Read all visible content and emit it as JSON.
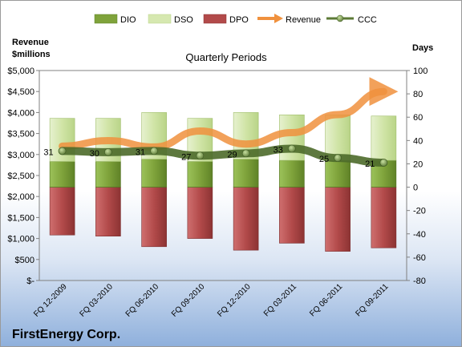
{
  "chart_data": {
    "type": "bar",
    "title": "Quarterly Periods",
    "company": "FirstEnergy Corp.",
    "left_axis_label": [
      "Revenue",
      "$millions"
    ],
    "right_axis_label": "Days",
    "categories": [
      "FQ 12-2009",
      "FQ 03-2010",
      "FQ 06-2010",
      "FQ 09-2010",
      "FQ 12-2010",
      "FQ 03-2011",
      "FQ 06-2011",
      "FQ 09-2011"
    ],
    "left_ticks": [
      "$5,000",
      "$4,500",
      "$4,000",
      "$3,500",
      "$3,000",
      "$2,500",
      "$2,000",
      "$1,500",
      "$1,000",
      "$500",
      "$-"
    ],
    "right_ticks": [
      "100",
      "80",
      "60",
      "40",
      "20",
      "0",
      "-20",
      "-40",
      "-60",
      "-80"
    ],
    "left_ylim": [
      0,
      5000
    ],
    "right_ylim": [
      -80,
      100
    ],
    "legend_position": "top",
    "series": [
      {
        "name": "DIO",
        "kind": "stacked-bar",
        "axis": "days",
        "color": "#7fa33b",
        "values": [
          22,
          22,
          24,
          22,
          24,
          23,
          23,
          23
        ]
      },
      {
        "name": "DSO",
        "kind": "stacked-bar",
        "axis": "days",
        "color": "#d6e8b0",
        "values": [
          37,
          37,
          40,
          37,
          40,
          39,
          39,
          38
        ]
      },
      {
        "name": "DPO",
        "kind": "negative-bar",
        "axis": "days",
        "color": "#b24a4a",
        "values": [
          -41,
          -42,
          -51,
          -44,
          -54,
          -48,
          -55,
          -52
        ]
      },
      {
        "name": "Revenue",
        "kind": "line",
        "axis": "revenue",
        "color": "#f0913d",
        "values": [
          3200,
          3330,
          3180,
          3560,
          3250,
          3520,
          3950,
          4500
        ]
      },
      {
        "name": "CCC",
        "kind": "line",
        "axis": "days",
        "color": "#5c7a36",
        "values": [
          31,
          30,
          31,
          27,
          29,
          33,
          25,
          21
        ],
        "labels": [
          "31",
          "30",
          "31",
          "27",
          "29",
          "33",
          "25",
          "21"
        ]
      }
    ]
  }
}
